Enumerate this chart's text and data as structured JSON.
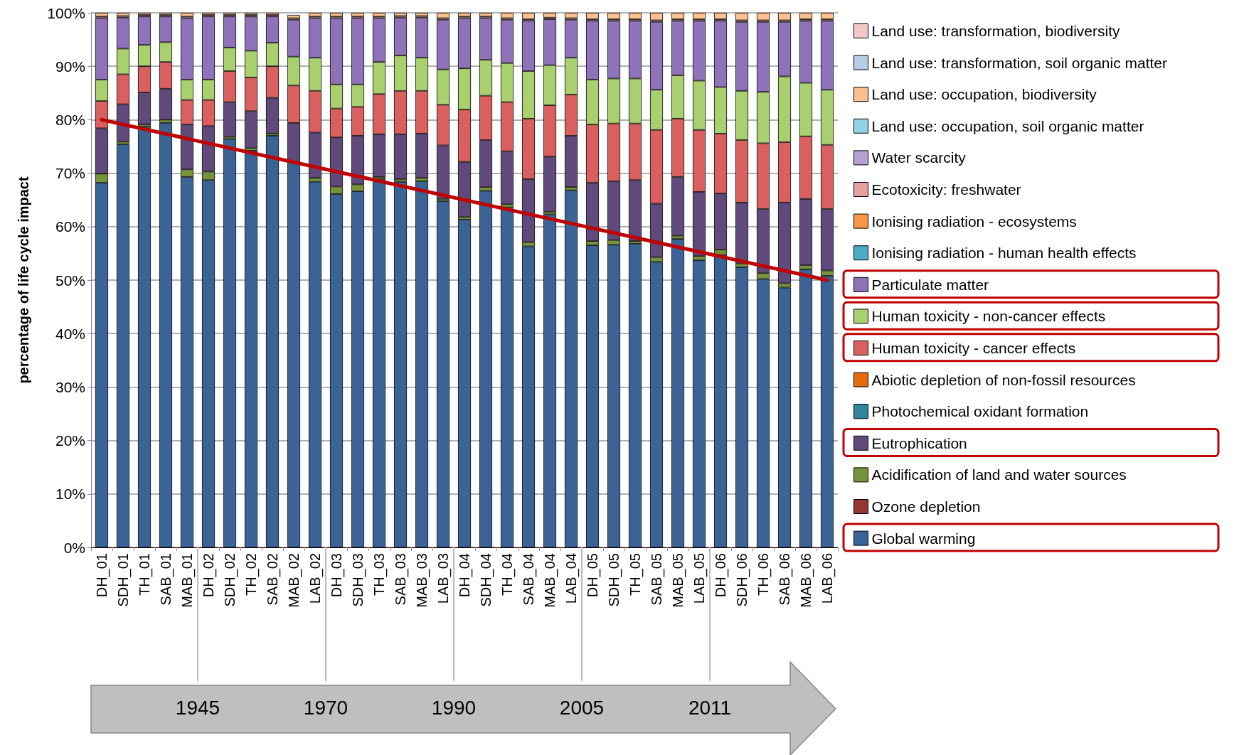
{
  "chart_data": {
    "type": "bar",
    "stacked": true,
    "ylabel": "percentage of life cycle impact",
    "legend": "right",
    "grid": "y",
    "marker": "none",
    "categories": [
      "DH_01",
      "SDH_01",
      "TH_01",
      "SAB_01",
      "MAB_01",
      "DH_02",
      "SDH_02",
      "TH_02",
      "SAB_02",
      "MAB_02",
      "LAB_02",
      "DH_03",
      "SDH_03",
      "TH_03",
      "SAB_03",
      "MAB_03",
      "LAB_03",
      "DH_04",
      "SDH_04",
      "TH_04",
      "SAB_04",
      "MAB_04",
      "LAB_04",
      "DH_05",
      "SDH_05",
      "TH_05",
      "SAB_05",
      "MAB_05",
      "LAB_05",
      "DH_06",
      "SDH_06",
      "TH_06",
      "SAB_06",
      "MAB_06",
      "LAB_06"
    ],
    "ylim": [
      0,
      100
    ],
    "yticks": [
      {
        "value": 0,
        "label": "0%"
      },
      {
        "value": 10,
        "label": "10%"
      },
      {
        "value": 20,
        "label": "20%"
      },
      {
        "value": 30,
        "label": "30%"
      },
      {
        "value": 40,
        "label": "40%"
      },
      {
        "value": 50,
        "label": "50%"
      },
      {
        "value": 60,
        "label": "60%"
      },
      {
        "value": 70,
        "label": "70%"
      },
      {
        "value": 80,
        "label": "80%"
      },
      {
        "value": 90,
        "label": "90%"
      },
      {
        "value": 100,
        "label": "100%"
      }
    ],
    "annotations": [
      "1945",
      "1970",
      "1990",
      "2005",
      "2011"
    ],
    "series": [
      {
        "name": "Global warming",
        "color": "#3a6496",
        "values": [
          68.2,
          75.4,
          78.7,
          79.4,
          69.3,
          68.7,
          76.4,
          74.2,
          77.0,
          72.1,
          68.4,
          66.1,
          66.6,
          68.9,
          68.4,
          68.5,
          64.8,
          61.3,
          66.7,
          63.6,
          56.3,
          62.3,
          66.8,
          56.5,
          56.6,
          56.8,
          53.4,
          57.7,
          53.7,
          54.7,
          52.4,
          50.2,
          48.6,
          52.0,
          50.8
        ]
      },
      {
        "name": "Ozone depletion",
        "color": "#943634",
        "values": [
          0,
          0,
          0,
          0,
          0,
          0,
          0,
          0,
          0,
          0,
          0,
          0,
          0,
          0,
          0,
          0,
          0,
          0,
          0,
          0,
          0,
          0,
          0,
          0,
          0,
          0,
          0,
          0,
          0,
          0,
          0,
          0,
          0,
          0,
          0
        ]
      },
      {
        "name": "Acidification of land and water sources",
        "color": "#77933c",
        "values": [
          1.7,
          0.5,
          0.4,
          0.6,
          1.4,
          1.6,
          0.4,
          0.5,
          0.4,
          null,
          0.7,
          1.4,
          1.3,
          0.4,
          0.5,
          0.6,
          0.4,
          0.5,
          0.7,
          0.6,
          0.8,
          0.5,
          0.6,
          0.8,
          0.9,
          0.5,
          0.9,
          0.6,
          0.8,
          1.0,
          0.7,
          1.1,
          0.8,
          0.8,
          1.0
        ]
      },
      {
        "name": "Eutrophication",
        "color": "#604a7b",
        "values": [
          8.5,
          7.0,
          6.0,
          5.8,
          8.4,
          8.5,
          6.5,
          6.9,
          6.7,
          7.3,
          8.5,
          9.2,
          9.1,
          8.0,
          8.4,
          8.3,
          10.0,
          10.3,
          8.8,
          9.9,
          11.8,
          10.3,
          9.6,
          10.9,
          11.0,
          11.4,
          10.0,
          11.0,
          12.0,
          10.5,
          11.4,
          12.0,
          15.1,
          12.4,
          11.5
        ]
      },
      {
        "name": "Photochemical oxidant formation",
        "color": "#31859c",
        "values": [
          0,
          0,
          0,
          0,
          0,
          0,
          0,
          0,
          0,
          0,
          0,
          0,
          0,
          0,
          0,
          0,
          0,
          0,
          0,
          0,
          0,
          0,
          0,
          0,
          0,
          0,
          0,
          0,
          0,
          0,
          0,
          0,
          0,
          0,
          0
        ]
      },
      {
        "name": "Abiotic depletion of non-fossil resources",
        "color": "#e46c0a",
        "values": [
          0,
          0,
          0,
          0,
          0,
          0,
          0,
          0,
          0,
          0,
          0,
          0,
          0,
          0,
          0,
          0,
          0,
          0,
          0,
          0,
          0,
          0,
          0,
          0,
          0,
          0,
          0,
          0,
          0,
          0,
          0,
          0,
          0,
          0,
          0
        ]
      },
      {
        "name": "Human toxicity - cancer effects",
        "color": "#d9605e",
        "values": [
          5.1,
          5.6,
          4.9,
          5.0,
          4.6,
          4.9,
          5.8,
          6.3,
          5.9,
          7.0,
          7.8,
          5.4,
          5.4,
          7.5,
          8.1,
          8.0,
          7.6,
          9.8,
          8.3,
          9.2,
          11.3,
          9.6,
          7.7,
          10.9,
          10.8,
          10.6,
          13.8,
          10.9,
          11.6,
          11.2,
          11.7,
          12.3,
          11.3,
          11.7,
          12.0
        ]
      },
      {
        "name": "Human toxicity - non-cancer effects",
        "color": "#a9cf6e",
        "values": [
          4.0,
          4.8,
          4.0,
          3.7,
          3.8,
          3.8,
          4.4,
          5.0,
          4.4,
          5.4,
          6.2,
          4.5,
          4.2,
          6.0,
          6.6,
          6.2,
          6.6,
          7.7,
          6.7,
          7.3,
          8.9,
          7.5,
          6.9,
          8.4,
          8.4,
          8.4,
          7.5,
          8.1,
          9.2,
          8.7,
          9.2,
          9.6,
          12.3,
          10.0,
          10.3
        ]
      },
      {
        "name": "Particulate matter",
        "color": "#8f72b8",
        "values": [
          11.5,
          5.8,
          5.3,
          4.8,
          11.5,
          11.8,
          5.8,
          6.4,
          4.9,
          6.9,
          7.4,
          12.4,
          12.4,
          8.2,
          7.1,
          7.5,
          9.3,
          9.4,
          7.8,
          8.1,
          9.4,
          8.6,
          7.1,
          11.0,
          10.8,
          10.8,
          12.7,
          10.2,
          11.2,
          12.4,
          12.9,
          13.1,
          10.2,
          11.6,
          12.9
        ]
      },
      {
        "name": "Ionising radiation - human health effects",
        "color": "#4bacc6",
        "values": [
          0,
          0,
          0,
          0,
          0,
          0,
          0,
          0,
          0,
          0,
          0,
          0,
          0,
          0,
          0,
          0,
          0,
          0,
          0,
          0,
          0,
          0,
          0,
          0,
          0,
          0,
          0,
          0,
          0,
          0,
          0,
          0,
          0,
          0,
          0
        ]
      },
      {
        "name": "Ionising radiation - ecosystems",
        "color": "#f79646",
        "values": [
          0,
          0,
          0,
          0,
          0,
          0,
          0,
          0,
          0,
          0,
          0,
          0,
          0,
          0,
          0,
          0,
          0,
          0,
          0,
          0,
          0,
          0,
          0,
          0,
          0,
          0,
          0,
          0,
          0,
          0,
          0,
          0,
          0,
          0,
          0
        ]
      },
      {
        "name": "Ecotoxicity: freshwater",
        "color": "#e6a09e",
        "values": [
          0.3,
          0.3,
          0.3,
          0.3,
          0.3,
          0.3,
          0.3,
          0.3,
          0.3,
          0.3,
          0.3,
          0.3,
          0.3,
          0.3,
          0.3,
          0.3,
          0.3,
          0.3,
          0.3,
          0.3,
          0.3,
          0.3,
          0.3,
          0.3,
          0.3,
          0.3,
          0.3,
          0.3,
          0.3,
          0.3,
          0.3,
          0.3,
          0.3,
          0.3,
          0.3
        ]
      },
      {
        "name": "Water scarcity",
        "color": "#b3a2d2",
        "values": [
          0,
          0,
          0,
          0,
          0,
          0,
          0,
          0,
          0,
          0,
          0,
          0,
          0,
          0,
          0,
          0,
          0,
          0,
          0,
          0,
          0,
          0,
          0,
          0,
          0,
          0,
          0,
          0,
          0,
          0,
          0,
          0,
          0,
          0,
          0
        ]
      },
      {
        "name": "Land use: occupation, soil organic matter",
        "color": "#92d4e6",
        "values": [
          0,
          0,
          0,
          0,
          0,
          0,
          0,
          0,
          0,
          0,
          0,
          0,
          0,
          0,
          0,
          0,
          0,
          0,
          0,
          0,
          0,
          0,
          0,
          0,
          0,
          0,
          0,
          0,
          0,
          0,
          0,
          0,
          0,
          0,
          0
        ]
      },
      {
        "name": "Land use: occupation, biodiversity",
        "color": "#fac090",
        "values": [
          0.7,
          0.6,
          0.4,
          0.4,
          0.7,
          0.4,
          0.4,
          0.4,
          0.4,
          0.6,
          0.7,
          0.7,
          0.7,
          0.7,
          0.6,
          0.6,
          1.0,
          0.7,
          0.7,
          1.0,
          1.2,
          0.9,
          1.0,
          1.2,
          1.2,
          1.2,
          1.4,
          1.2,
          1.2,
          1.2,
          1.4,
          1.4,
          1.4,
          1.2,
          1.2
        ]
      },
      {
        "name": "Land use: transformation, soil organic matter",
        "color": "#b8cce4",
        "values": [
          0,
          0,
          0,
          0,
          0,
          0,
          0,
          0,
          0,
          0,
          0,
          0,
          0,
          0,
          0,
          0,
          0,
          0,
          0,
          0,
          0,
          0,
          0,
          0,
          0,
          0,
          0,
          0,
          0,
          0,
          0,
          0,
          0,
          0,
          0
        ]
      },
      {
        "name": "Land use: transformation, biodiversity",
        "color": "#f2c8c8",
        "values": [
          0,
          0,
          0,
          0,
          0,
          0,
          0,
          0,
          0,
          0,
          0,
          0,
          0,
          0,
          0,
          0,
          0,
          0,
          0,
          0,
          0,
          0,
          0,
          0,
          0,
          0,
          0,
          0,
          0,
          0,
          0,
          0,
          0,
          0,
          0
        ]
      },
      {
        "type": "line",
        "color": "#c00000",
        "x": [
          "DH_01",
          "LAB_06"
        ],
        "values": [
          80,
          50
        ]
      }
    ]
  }
}
